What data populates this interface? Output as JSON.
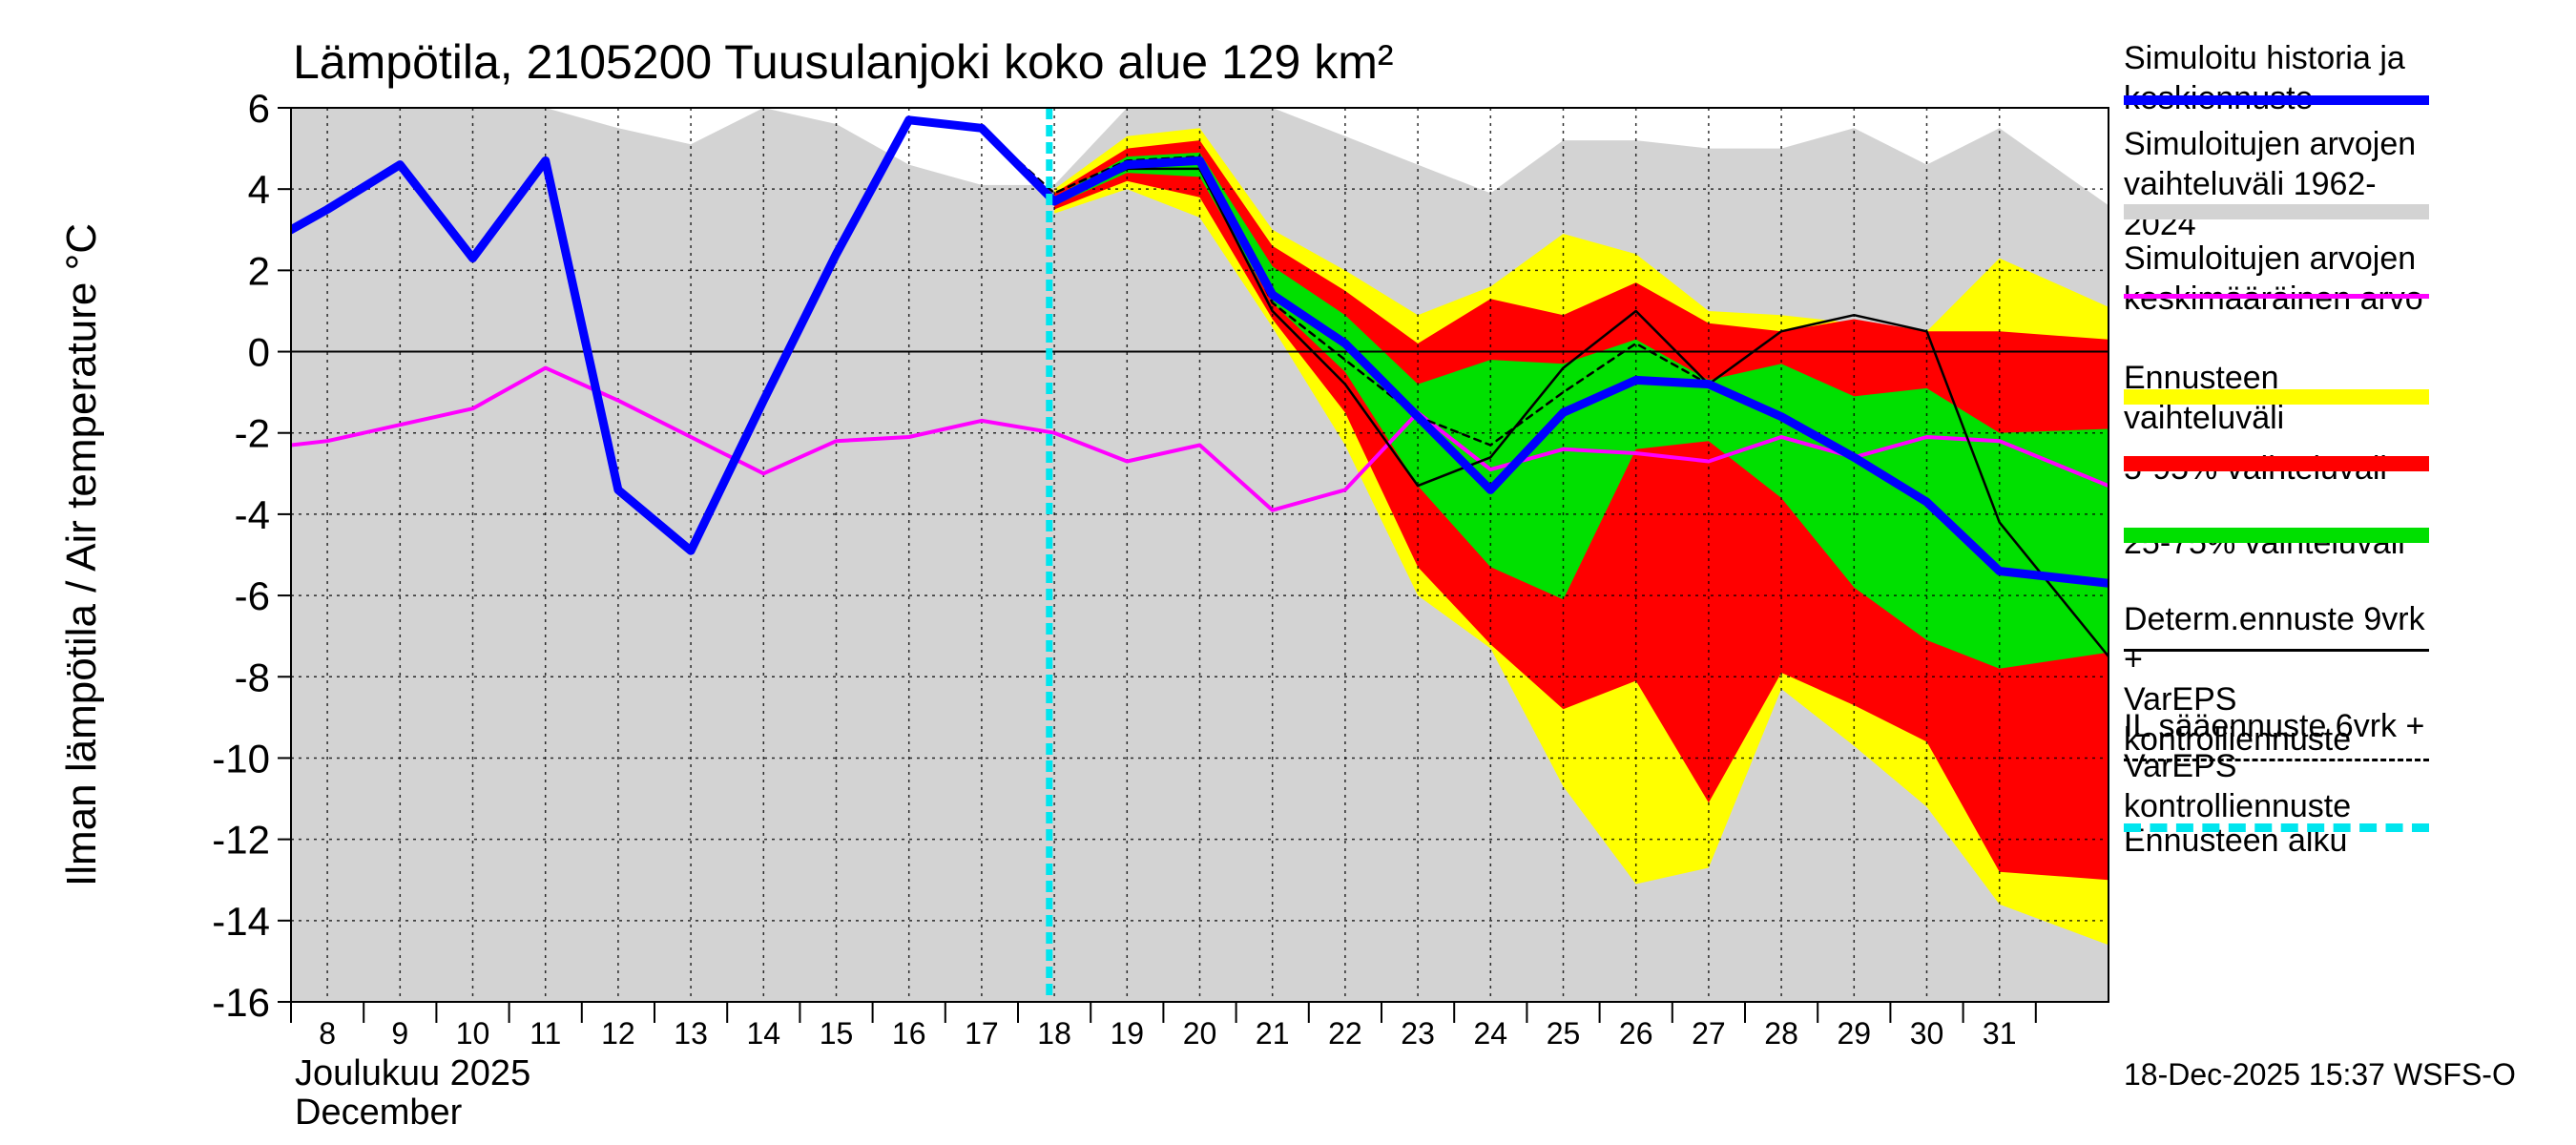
{
  "chart_data": {
    "type": "area",
    "title": "Lämpötila, 2105200 Tuusulanjoki koko alue 129 km²",
    "ylabel": "Ilman lämpötila / Air temperature   °C",
    "month_label_fi": "Joulukuu  2025",
    "month_label_en": "December",
    "ylim": [
      -16,
      6
    ],
    "yticks": [
      6,
      4,
      2,
      0,
      -2,
      -4,
      -6,
      -8,
      -10,
      -12,
      -14,
      -16
    ],
    "ytick_labels": [
      "6",
      "4",
      "2",
      "0",
      "-2",
      "-4",
      "-6",
      "-8",
      "-10",
      "-12",
      "-14",
      "-16"
    ],
    "xlim": [
      7.5,
      32.5
    ],
    "x_tick_labels": [
      "8",
      "9",
      "10",
      "11",
      "12",
      "13",
      "14",
      "15",
      "16",
      "17",
      "18",
      "19",
      "20",
      "21",
      "22",
      "23",
      "24",
      "25",
      "26",
      "27",
      "28",
      "29",
      "30",
      "31"
    ],
    "forecast_start": 17.93,
    "grid": true,
    "range_hist": {
      "x": [
        7.5,
        8,
        9,
        10,
        11,
        12,
        13,
        14,
        15,
        16,
        17,
        18,
        19,
        20,
        21,
        22,
        23,
        24,
        25,
        26,
        27,
        28,
        29,
        30,
        31,
        32.5
      ],
      "upper": [
        6,
        6,
        6,
        6,
        6,
        5.5,
        5.1,
        6,
        5.6,
        4.6,
        4.1,
        4.1,
        6,
        6,
        6,
        5.3,
        4.6,
        3.9,
        5.2,
        5.2,
        5.0,
        5.0,
        5.5,
        4.6,
        5.5,
        3.6
      ],
      "lower": [
        -16,
        -16,
        -16,
        -16,
        -16,
        -16,
        -16,
        -16,
        -16,
        -16,
        -16,
        -16,
        -16,
        -16,
        -16,
        -16,
        -16,
        -16,
        -16,
        -16,
        -16,
        -16,
        -16,
        -16,
        -16,
        -16
      ]
    },
    "ensemble_range": {
      "x": [
        18,
        19,
        20,
        21,
        22,
        23,
        24,
        25,
        26,
        27,
        28,
        29,
        30,
        31,
        32.5
      ],
      "upper": [
        4.0,
        5.3,
        5.5,
        3.0,
        2.0,
        0.9,
        1.6,
        2.9,
        2.4,
        1.0,
        0.9,
        0.7,
        0.5,
        2.3,
        1.1
      ],
      "lower": [
        3.4,
        4.0,
        3.3,
        0.6,
        -2.3,
        -6.0,
        -7.3,
        -10.7,
        -13.1,
        -12.7,
        -8.3,
        -9.7,
        -11.2,
        -13.6,
        -14.6
      ]
    },
    "range_5_95": {
      "x": [
        18,
        19,
        20,
        21,
        22,
        23,
        24,
        25,
        26,
        27,
        28,
        29,
        30,
        31,
        32.5
      ],
      "upper": [
        3.9,
        5.0,
        5.2,
        2.6,
        1.5,
        0.2,
        1.3,
        0.9,
        1.7,
        0.7,
        0.5,
        0.8,
        0.5,
        0.5,
        0.3
      ],
      "lower": [
        3.5,
        4.2,
        3.8,
        0.8,
        -1.5,
        -5.3,
        -7.2,
        -8.8,
        -8.1,
        -11.1,
        -7.9,
        -8.7,
        -9.6,
        -12.8,
        -13.0
      ]
    },
    "range_25_75": {
      "x": [
        18,
        19,
        20,
        21,
        22,
        23,
        24,
        25,
        26,
        27,
        28,
        29,
        30,
        31,
        32.5
      ],
      "upper": [
        3.8,
        4.8,
        4.9,
        2.1,
        0.9,
        -0.8,
        -0.2,
        -0.3,
        0.3,
        -0.7,
        -0.3,
        -1.1,
        -0.9,
        -2.0,
        -1.9
      ],
      "lower": [
        3.6,
        4.4,
        4.3,
        1.2,
        -0.5,
        -3.3,
        -5.3,
        -6.1,
        -2.4,
        -2.2,
        -3.6,
        -5.8,
        -7.1,
        -7.8,
        -7.4
      ]
    },
    "series": [
      {
        "name": "Simuloitujen arvojen keskimääräinen arvo",
        "color": "#ff00ff",
        "x": [
          7.5,
          8,
          9,
          10,
          11,
          12,
          13,
          14,
          15,
          16,
          17,
          18,
          19,
          20,
          21,
          22,
          23,
          24,
          25,
          26,
          27,
          28,
          29,
          30,
          31,
          32.5
        ],
        "values": [
          -2.3,
          -2.2,
          -1.8,
          -1.4,
          -0.4,
          -1.2,
          -2.1,
          -3.0,
          -2.2,
          -2.1,
          -1.7,
          -2.0,
          -2.7,
          -2.3,
          -3.9,
          -3.4,
          -1.5,
          -2.9,
          -2.4,
          -2.5,
          -2.7,
          -2.1,
          -2.6,
          -2.1,
          -2.2,
          -3.3
        ]
      },
      {
        "name": "Simuloitu historia ja keskiennuste",
        "color": "#0000ff",
        "x": [
          7.5,
          8,
          9,
          10,
          11,
          12,
          13,
          14,
          15,
          16,
          17,
          18,
          19,
          20,
          21,
          22,
          23,
          24,
          25,
          26,
          27,
          28,
          29,
          30,
          31,
          32.5
        ],
        "values": [
          3.0,
          3.5,
          4.6,
          2.3,
          4.7,
          -3.4,
          -4.9,
          -1.2,
          2.4,
          5.7,
          5.5,
          3.7,
          4.6,
          4.7,
          1.4,
          0.2,
          -1.6,
          -3.4,
          -1.5,
          -0.7,
          -0.8,
          -1.6,
          -2.6,
          -3.7,
          -5.4,
          -5.7
        ]
      },
      {
        "name": "Determ.ennuste 9vrk + VarEPS kontrolliennuste",
        "color": "#000000",
        "x": [
          16,
          17,
          18,
          19,
          20,
          21,
          22,
          23,
          24,
          25,
          26,
          27,
          28,
          29,
          30,
          31,
          32.5
        ],
        "values": [
          5.7,
          5.5,
          3.7,
          4.5,
          4.5,
          1.0,
          -0.8,
          -3.3,
          -2.6,
          -0.4,
          1.0,
          -0.8,
          0.5,
          0.9,
          0.5,
          -4.2,
          -7.5
        ]
      },
      {
        "name": "IL sääennuste 6vrk + VarEPS kontrolliennuste",
        "color": "#000000",
        "x": [
          16,
          17,
          18,
          19,
          20,
          21,
          22,
          23,
          24,
          25,
          26,
          27
        ],
        "values": [
          5.7,
          5.5,
          3.9,
          4.7,
          4.8,
          1.2,
          -0.2,
          -1.6,
          -2.3,
          -1.0,
          0.2,
          -0.8
        ]
      }
    ],
    "legend": [
      {
        "label": "Simuloitu historia ja\nkeskiennuste",
        "color": "#0000ff"
      },
      {
        "label": "Simuloitujen arvojen\nvaihteluväli 1962-2024",
        "color": "#d3d3d3"
      },
      {
        "label": "Simuloitujen arvojen\nkeskimääräinen arvo",
        "color": "#ff00ff"
      },
      {
        "label": "Ennusteen vaihteluväli",
        "color": "#ffff00"
      },
      {
        "label": "5-95% vaihteluväli",
        "color": "#ff0000"
      },
      {
        "label": "25-75% vaihteluväli",
        "color": "#00e000"
      },
      {
        "label": "Determ.ennuste 9vrk +\nVarEPS kontrolliennuste",
        "color": "#000000"
      },
      {
        "label": "IL sääennuste 6vrk  +\nVarEPS kontrolliennuste",
        "color": "#000000"
      },
      {
        "label": "Ennusteen alku",
        "color": "#00e5ee"
      }
    ],
    "footer": "18-Dec-2025 15:37 WSFS-O"
  }
}
